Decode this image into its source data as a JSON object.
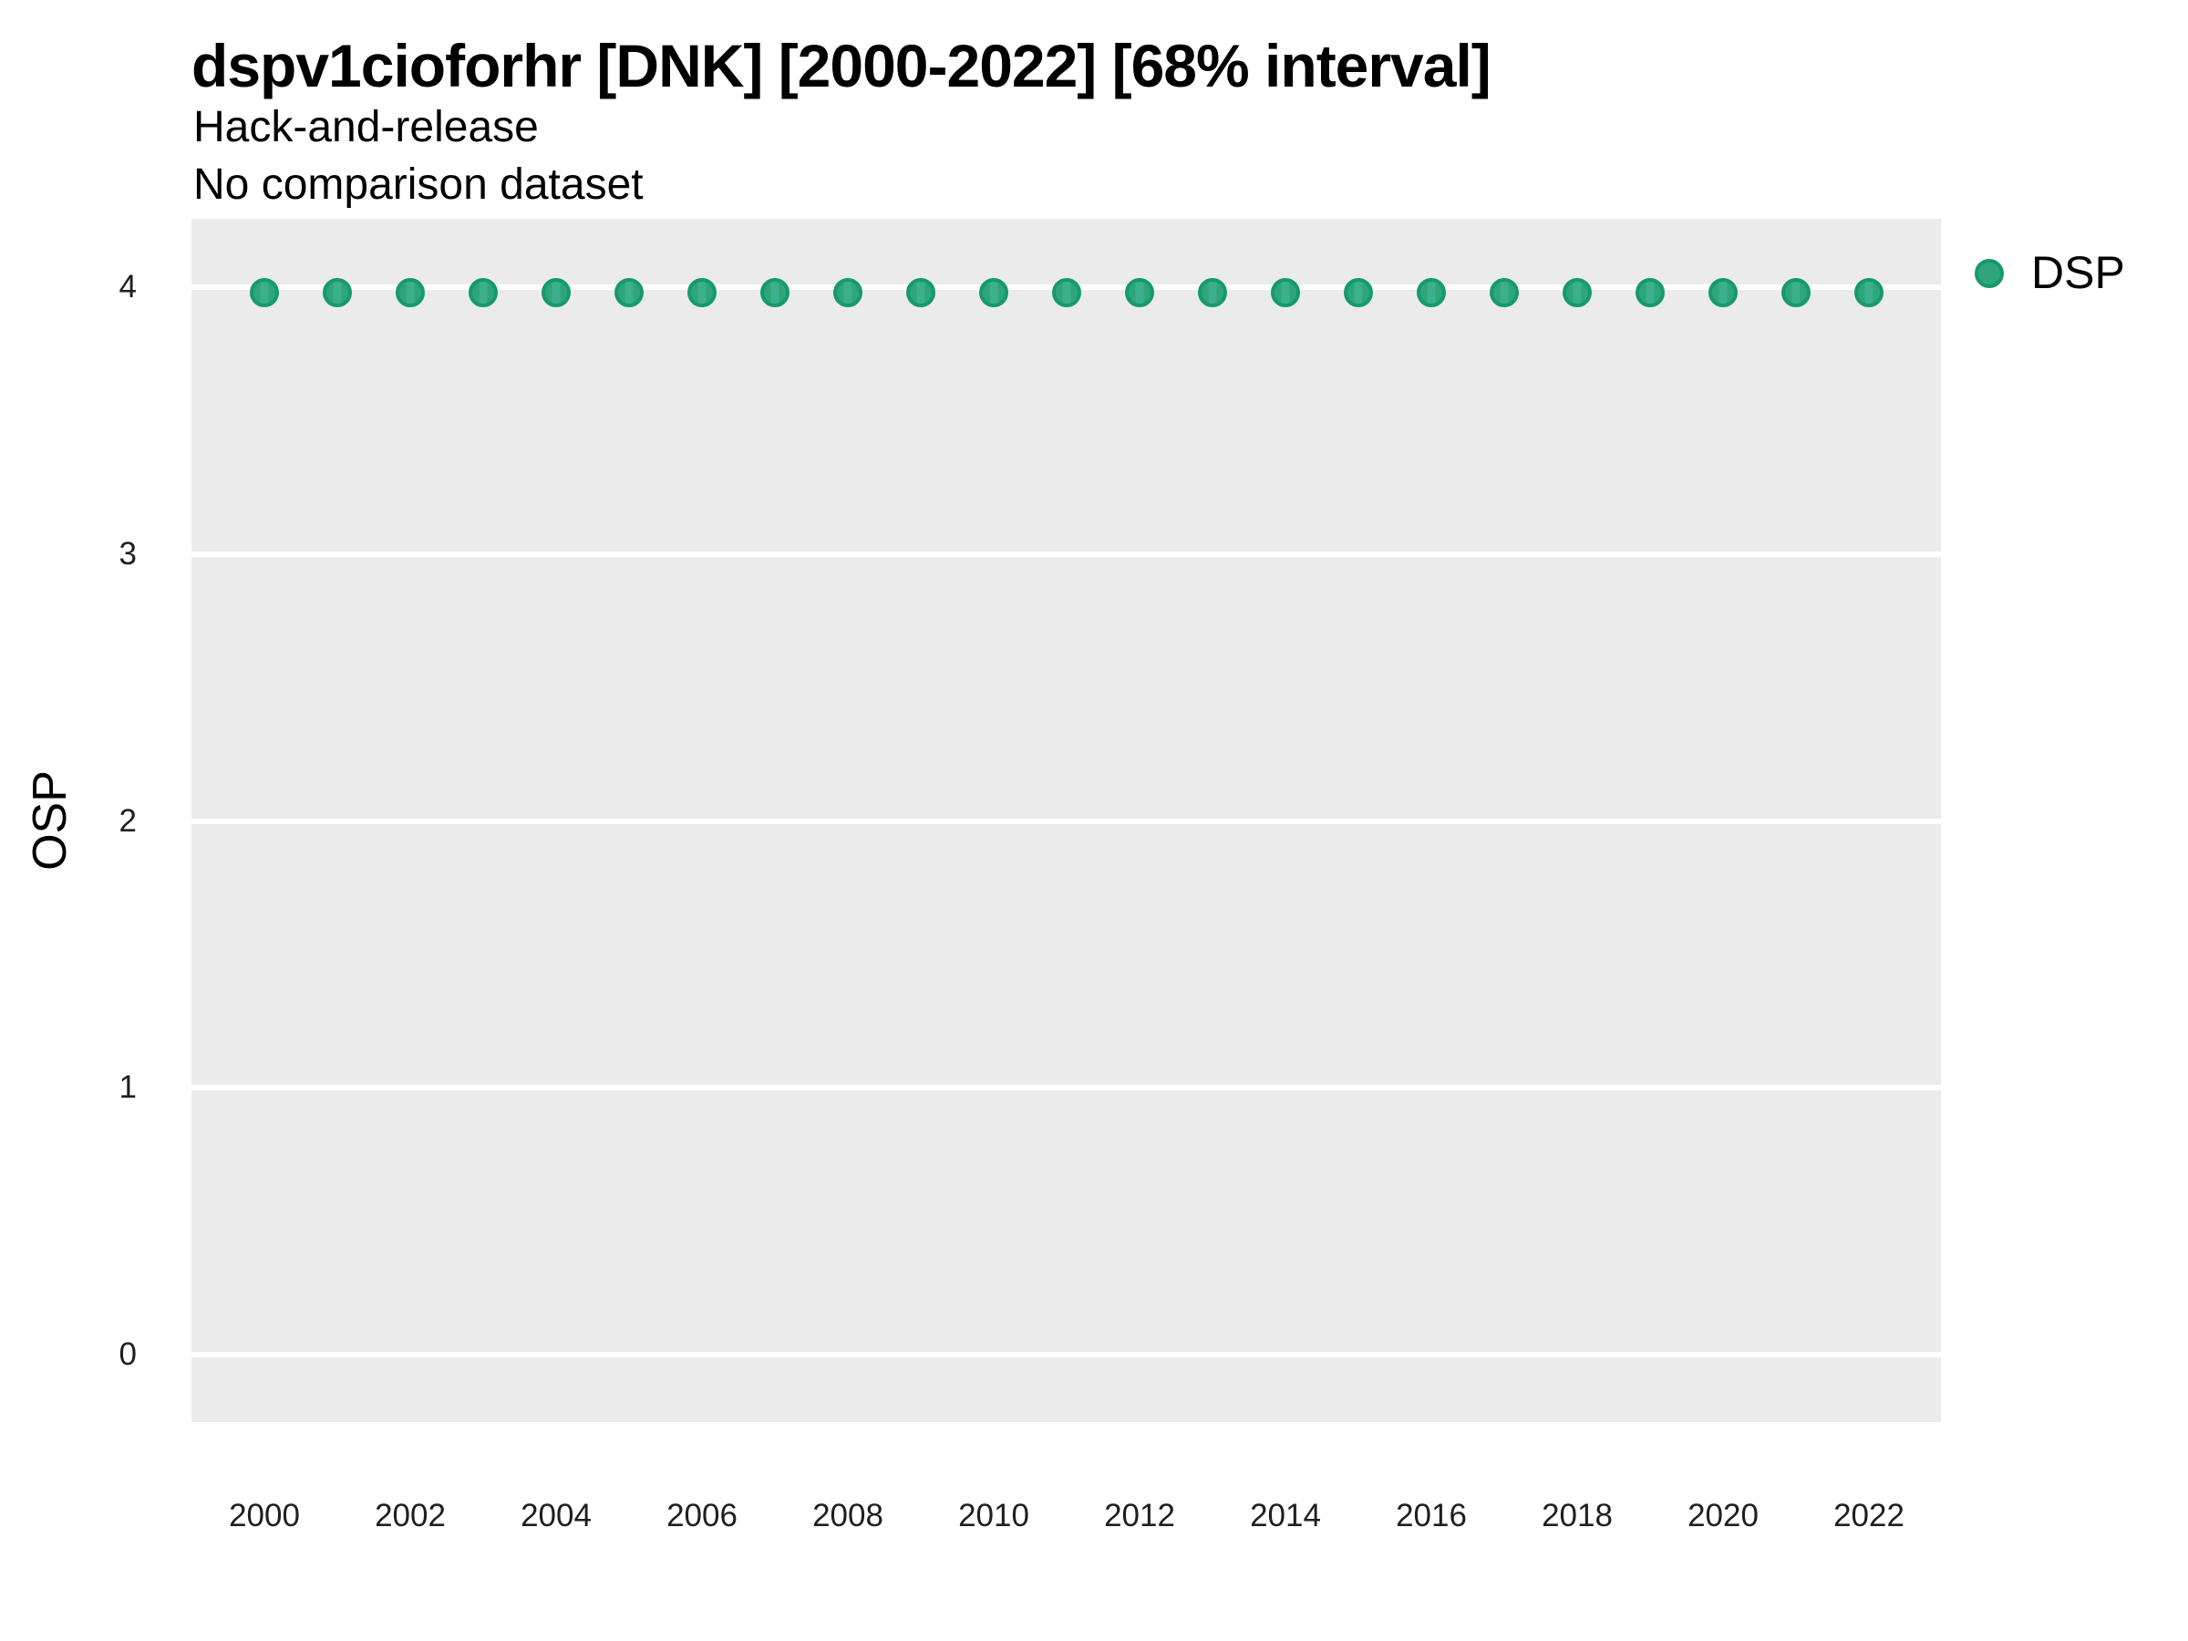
{
  "header": {
    "title": "dspv1cioforhr [DNK] [2000-2022] [68% interval]",
    "subtitles": [
      "Hack-and-release",
      "No comparison dataset"
    ]
  },
  "y_axis": {
    "label": "OSP",
    "ticks": [
      4,
      3,
      2,
      1,
      0
    ]
  },
  "x_axis": {
    "ticks": [
      2000,
      2002,
      2004,
      2006,
      2008,
      2010,
      2012,
      2014,
      2016,
      2018,
      2020,
      2022
    ]
  },
  "legend": {
    "position": "right",
    "items": [
      {
        "label": "DSP",
        "marker": "circle-icon",
        "color": "#2ea57b"
      }
    ]
  },
  "colors": {
    "panel_background": "#ebebeb",
    "gridline": "#ffffff",
    "point_fill": "#2ea57b",
    "point_fill_light": "#3cb08a",
    "point_stroke": "#159a6c",
    "text": "#000000",
    "tick_text": "#1f1f1f"
  },
  "chart_data": {
    "type": "scatter",
    "title": "dspv1cioforhr [DNK] [2000-2022] [68% interval]",
    "subtitle": "Hack-and-release — No comparison dataset",
    "xlabel": "",
    "ylabel": "OSP",
    "xlim": [
      1998.9,
      2023.1
    ],
    "ylim": [
      -0.26,
      4.26
    ],
    "x_ticks": [
      2000,
      2002,
      2004,
      2006,
      2008,
      2010,
      2012,
      2014,
      2016,
      2018,
      2020,
      2022
    ],
    "y_ticks": [
      0,
      1,
      2,
      3,
      4
    ],
    "grid": "horizontal major gridlines only, white on gray panel",
    "legend_position": "right",
    "interval_label": "68% interval",
    "series": [
      {
        "name": "DSP",
        "x": [
          2000,
          2001,
          2002,
          2003,
          2004,
          2005,
          2006,
          2007,
          2008,
          2009,
          2010,
          2011,
          2012,
          2013,
          2014,
          2015,
          2016,
          2017,
          2018,
          2019,
          2020,
          2021,
          2022
        ],
        "y": [
          3.98,
          3.98,
          3.98,
          3.98,
          3.98,
          3.98,
          3.98,
          3.98,
          3.98,
          3.98,
          3.98,
          3.98,
          3.98,
          3.98,
          3.98,
          3.98,
          3.98,
          3.98,
          3.98,
          3.98,
          3.98,
          3.98,
          3.98
        ]
      }
    ]
  }
}
